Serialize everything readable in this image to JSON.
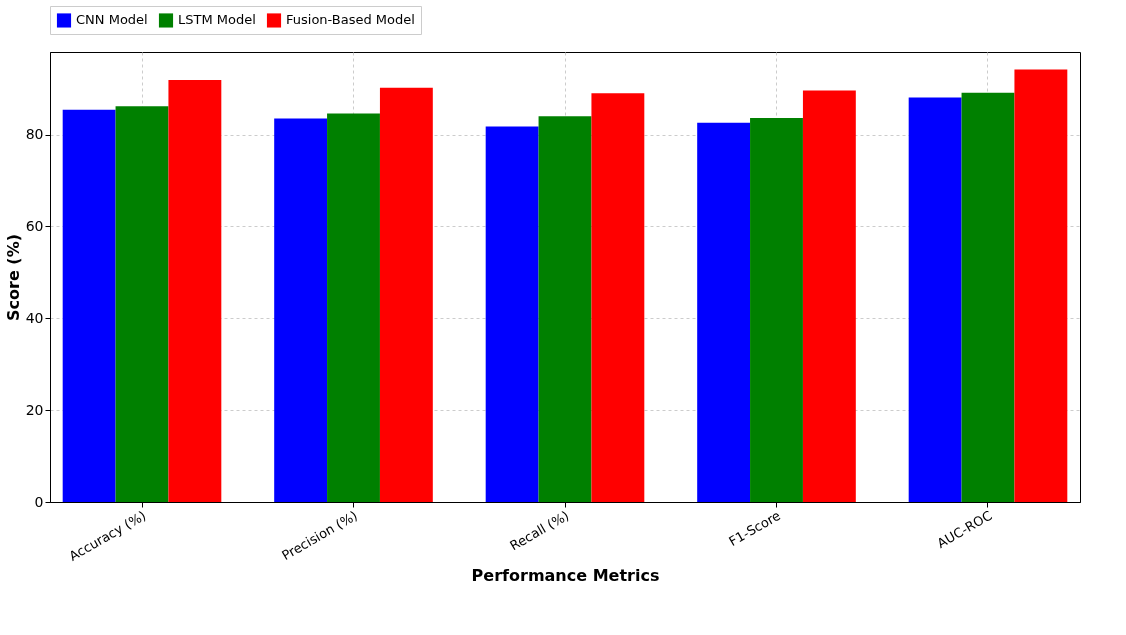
{
  "chart_data": {
    "type": "bar",
    "xlabel": "Performance Metrics",
    "ylabel": "Score (%)",
    "categories": [
      "Accuracy (%)",
      "Precision (%)",
      "Recall (%)",
      "F1-Score",
      "AUC-ROC"
    ],
    "series": [
      {
        "name": "CNN Model",
        "color": "#0000ff",
        "values": [
          85.4,
          83.5,
          81.8,
          82.6,
          88.1
        ]
      },
      {
        "name": "LSTM Model",
        "color": "#008000",
        "values": [
          86.2,
          84.6,
          84,
          83.6,
          89.1
        ]
      },
      {
        "name": "Fusion-Based Model",
        "color": "#ff0000",
        "values": [
          91.9,
          90.2,
          89.0,
          89.6,
          94.2
        ]
      }
    ],
    "ylim": [
      0,
      98
    ],
    "yticks": [
      0,
      20,
      40,
      60,
      80
    ],
    "grid": true,
    "legend": "top"
  }
}
